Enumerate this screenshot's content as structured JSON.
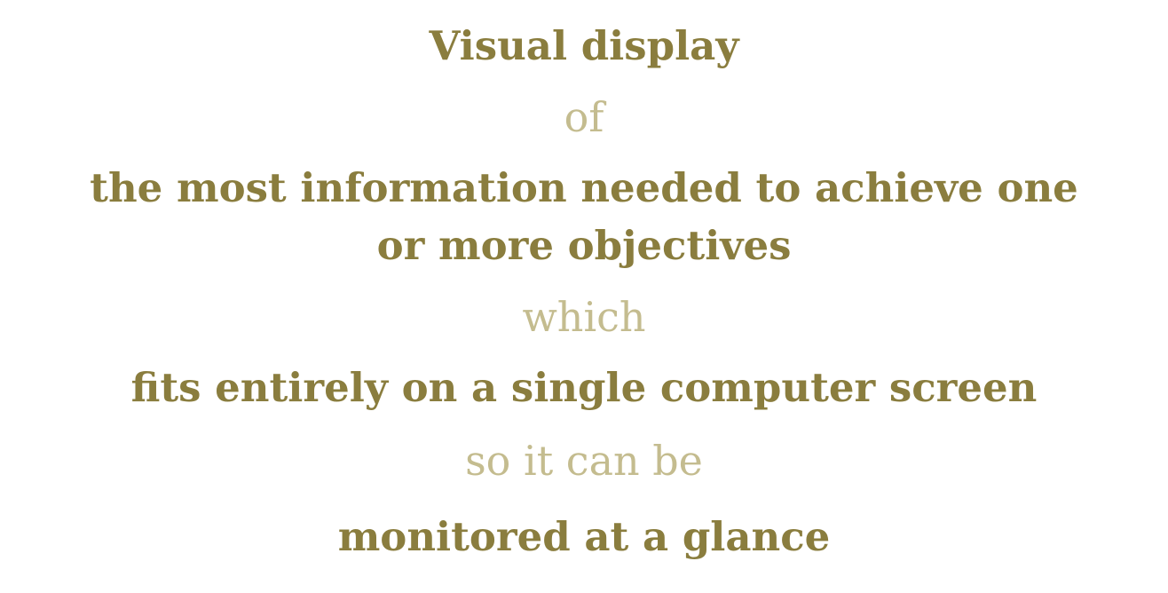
{
  "lines": [
    {
      "text": "Visual display",
      "style": "strong"
    },
    {
      "text": "of",
      "style": "light"
    },
    {
      "text": "the most information needed to achieve one",
      "style": "strong"
    },
    {
      "text": "or more objectives",
      "style": "strong"
    },
    {
      "text": "which",
      "style": "light"
    },
    {
      "text": "fits entirely on a single computer screen",
      "style": "strong"
    },
    {
      "text": "so it can be",
      "style": "light"
    },
    {
      "text": "monitored at a glance",
      "style": "strong"
    }
  ],
  "colors": {
    "strong": "#8a7d3e",
    "light": "#c4bc8f",
    "background": "#ffffff"
  }
}
